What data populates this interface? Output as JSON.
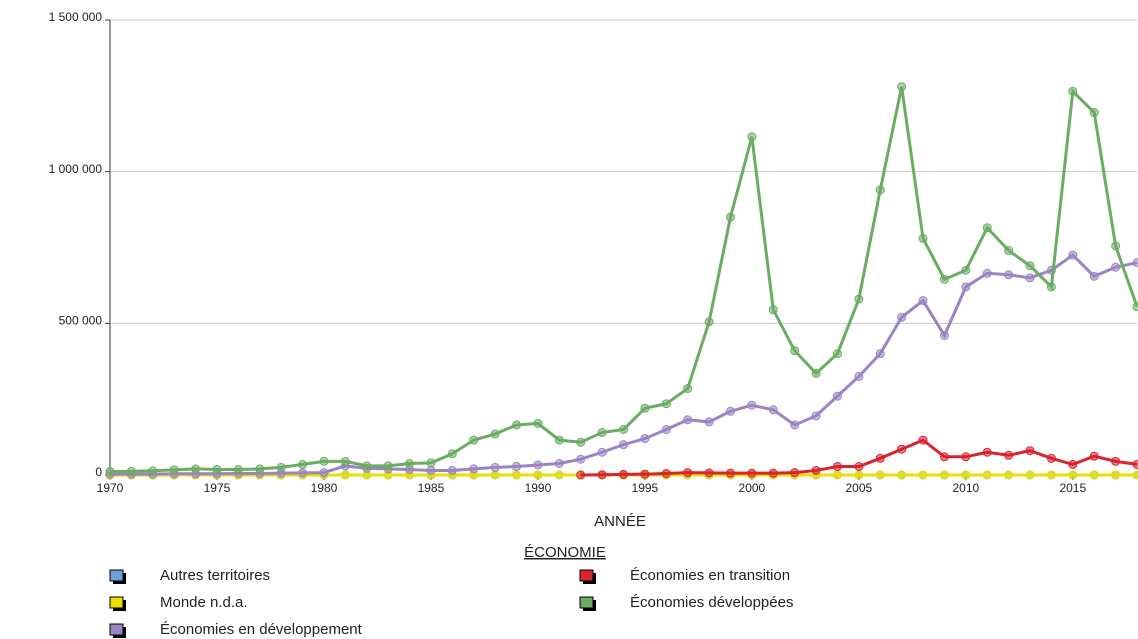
{
  "chart_data": {
    "type": "line",
    "x_label": "ANNÉE",
    "legend_title": "ÉCONOMIE",
    "x": [
      1970,
      1971,
      1972,
      1973,
      1974,
      1975,
      1976,
      1977,
      1978,
      1979,
      1980,
      1981,
      1982,
      1983,
      1984,
      1985,
      1986,
      1987,
      1988,
      1989,
      1990,
      1991,
      1992,
      1993,
      1994,
      1995,
      1996,
      1997,
      1998,
      1999,
      2000,
      2001,
      2002,
      2003,
      2004,
      2005,
      2006,
      2007,
      2008,
      2009,
      2010,
      2011,
      2012,
      2013,
      2014,
      2015,
      2016,
      2017,
      2018
    ],
    "xlim": [
      1970,
      2018
    ],
    "xticks": [
      1970,
      1975,
      1980,
      1985,
      1990,
      1995,
      2000,
      2005,
      2010,
      2015
    ],
    "ylim": [
      0,
      1500000
    ],
    "yticks": [
      0,
      {
        "value": 500000,
        "label": "500 000"
      },
      {
        "value": 1000000,
        "label": "1 000 000"
      },
      {
        "value": 1500000,
        "label": "1 500 000"
      }
    ],
    "grid": true,
    "series": [
      {
        "name": "Autres territoires",
        "color": "#6fa0d8",
        "values": [
          0,
          0,
          0,
          0,
          0,
          0,
          0,
          0,
          0,
          0,
          0,
          0,
          0,
          0,
          0,
          0,
          0,
          0,
          0,
          0,
          0,
          0,
          0,
          0,
          0,
          0,
          0,
          0,
          0,
          0,
          0,
          0,
          0,
          0,
          0,
          0,
          0,
          0,
          0,
          0,
          0,
          0,
          0,
          0,
          0,
          0,
          0,
          0,
          0
        ]
      },
      {
        "name": "Monde n.d.a.",
        "color": "#e8e000",
        "values": [
          0,
          0,
          0,
          0,
          0,
          0,
          0,
          0,
          0,
          0,
          0,
          0,
          0,
          0,
          0,
          0,
          0,
          0,
          0,
          0,
          0,
          0,
          0,
          0,
          0,
          0,
          0,
          0,
          0,
          0,
          0,
          0,
          0,
          0,
          0,
          0,
          0,
          0,
          0,
          0,
          0,
          0,
          0,
          0,
          0,
          0,
          0,
          0,
          0
        ]
      },
      {
        "name": "Économies en développement",
        "color": "#9b84c4",
        "values": [
          3000,
          3000,
          3000,
          4000,
          4000,
          4000,
          5000,
          5000,
          6000,
          7000,
          8000,
          30000,
          22000,
          20000,
          18000,
          15000,
          15000,
          20000,
          25000,
          28000,
          33000,
          38000,
          52000,
          75000,
          100000,
          120000,
          150000,
          182000,
          175000,
          210000,
          230000,
          215000,
          165000,
          195000,
          260000,
          325000,
          400000,
          520000,
          575000,
          460000,
          620000,
          665000,
          660000,
          650000,
          675000,
          725000,
          655000,
          685000,
          700000
        ]
      },
      {
        "name": "Économies en transition",
        "color": "#d9232e",
        "values": [
          null,
          null,
          null,
          null,
          null,
          null,
          null,
          null,
          null,
          null,
          null,
          null,
          null,
          null,
          null,
          null,
          null,
          null,
          null,
          null,
          null,
          null,
          0,
          1000,
          2000,
          3000,
          5000,
          8000,
          7000,
          6000,
          6000,
          6000,
          8000,
          15000,
          28000,
          28000,
          55000,
          85000,
          115000,
          60000,
          60000,
          75000,
          65000,
          80000,
          55000,
          35000,
          62000,
          45000,
          35000
        ]
      },
      {
        "name": "Économies développées",
        "color": "#6aac62",
        "values": [
          12000,
          12000,
          14000,
          17000,
          20000,
          18000,
          18000,
          20000,
          25000,
          35000,
          45000,
          45000,
          30000,
          30000,
          38000,
          40000,
          70000,
          115000,
          135000,
          165000,
          170000,
          115000,
          108000,
          140000,
          150000,
          220000,
          235000,
          285000,
          505000,
          850000,
          1115000,
          545000,
          410000,
          335000,
          400000,
          580000,
          940000,
          1280000,
          780000,
          645000,
          675000,
          815000,
          740000,
          690000,
          620000,
          1265000,
          1195000,
          755000,
          555000
        ]
      }
    ]
  }
}
